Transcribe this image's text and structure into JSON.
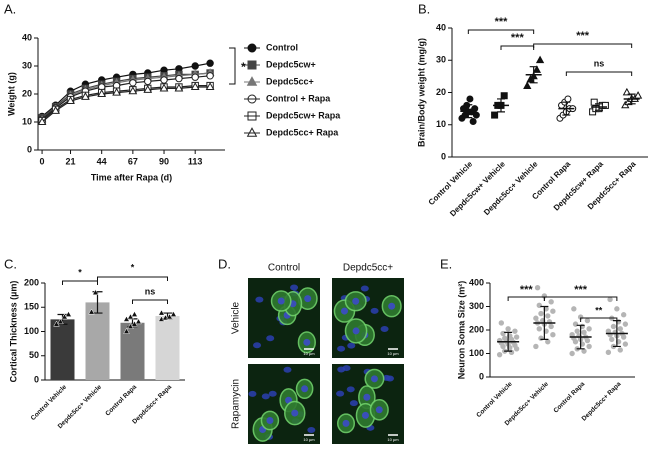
{
  "chart_data": [
    {
      "type": "line",
      "label": "A.",
      "x_label": "Time after Rapa (d)",
      "y_label": "Weight (g)",
      "x": [
        0,
        10,
        21,
        32,
        44,
        55,
        67,
        78,
        90,
        101,
        113,
        124
      ],
      "xlim": [
        -3,
        135
      ],
      "xticks": [
        0,
        21,
        44,
        67,
        90,
        113
      ],
      "ylim": [
        0,
        40
      ],
      "yticks": [
        0,
        10,
        20,
        30,
        40
      ],
      "series": [
        {
          "name": "Control",
          "color": "#111111",
          "marker": "circle",
          "filled": true,
          "values": [
            12,
            16,
            21,
            23.5,
            25,
            26,
            27,
            27.5,
            28.5,
            29,
            30,
            31
          ]
        },
        {
          "name": "Depdc5cw+",
          "color": "#444444",
          "marker": "square",
          "filled": true,
          "values": [
            11.5,
            15.5,
            20,
            22,
            23.5,
            24.5,
            25.5,
            26,
            26.5,
            27,
            27,
            27.5
          ]
        },
        {
          "name": "Depdc5cc+",
          "color": "#777777",
          "marker": "triangle",
          "filled": true,
          "values": [
            11,
            15,
            19.5,
            21.5,
            23,
            24,
            25,
            25.5,
            26,
            26.5,
            27,
            27.5
          ]
        },
        {
          "name": "Control + Rapa",
          "color": "#222222",
          "marker": "circle",
          "filled": false,
          "values": [
            11,
            15,
            19,
            21,
            22.5,
            23,
            24,
            24.5,
            25,
            25.5,
            26,
            26.5
          ]
        },
        {
          "name": "Depdc5cw+ Rapa",
          "color": "#222222",
          "marker": "square",
          "filled": false,
          "values": [
            10.5,
            14.5,
            18,
            19.5,
            20.5,
            21,
            21.5,
            22,
            22.5,
            22.5,
            23,
            23
          ]
        },
        {
          "name": "Depdc5cc+ Rapa",
          "color": "#222222",
          "marker": "triangle",
          "filled": false,
          "values": [
            10,
            14,
            17.5,
            19,
            20,
            20.5,
            21,
            21.5,
            22,
            22,
            22.5,
            22.5
          ]
        }
      ],
      "annotations": [
        "*"
      ]
    },
    {
      "type": "dot",
      "label": "B.",
      "y_label": "Brain/Body weight (mg/g)",
      "categories": [
        "Control Vehicle",
        "Depdc5cw+ Vehicle",
        "Depdc5cc+ Vehicle",
        "Control Rapa",
        "Depdc5cw+ Rapa",
        "Depdc5cc+ Rapa"
      ],
      "markers": [
        "circle",
        "square",
        "triangle",
        "circle",
        "square",
        "triangle"
      ],
      "filled": [
        true,
        true,
        true,
        false,
        false,
        false
      ],
      "color": "#111111",
      "marker_size": 3,
      "points": [
        [
          12,
          13,
          14,
          14,
          15,
          15,
          16,
          18,
          11,
          13
        ],
        [
          13,
          16,
          16,
          19
        ],
        [
          22,
          24,
          25,
          27,
          30
        ],
        [
          12,
          13,
          14,
          15,
          15,
          16,
          17,
          18
        ],
        [
          14,
          15,
          15,
          16,
          16,
          17
        ],
        [
          16,
          17,
          18,
          18,
          19,
          20
        ]
      ],
      "means": [
        14.2,
        16,
        25.5,
        15,
        15.5,
        18
      ],
      "errors": [
        2,
        2,
        2.5,
        2,
        1,
        1.5
      ],
      "ylim": [
        0,
        40
      ],
      "yticks": [
        0,
        10,
        20,
        30,
        40
      ],
      "annotations": [
        "***",
        "***",
        "***",
        "ns"
      ]
    },
    {
      "type": "bar",
      "label": "C.",
      "y_label": "Cortical Thickness (µm)",
      "categories": [
        "Control Vehicle",
        "Depdc5cc+ Vehicle",
        "Control Rapa",
        "Depdc5cc+ Rapa"
      ],
      "values": [
        125,
        160,
        118,
        132
      ],
      "errors": [
        10,
        22,
        8,
        6
      ],
      "colors": [
        "#3a3a3a",
        "#a8a8a8",
        "#7a7a7a",
        "#d6d6d6"
      ],
      "points": [
        [
          115,
          120,
          130,
          135
        ],
        [
          140,
          180
        ],
        [
          100,
          110,
          115,
          120,
          125,
          130,
          135
        ],
        [
          125,
          128,
          130,
          135,
          138
        ]
      ],
      "ylim": [
        0,
        200
      ],
      "yticks": [
        0,
        50,
        100,
        150,
        200
      ],
      "annotations": [
        "*",
        "*",
        "ns"
      ]
    },
    {
      "type": "dot",
      "label": "E.",
      "y_label": "Neuron Soma Size (m²)",
      "categories": [
        "Control Vehicle",
        "Depdc5cc+ Vehicle",
        "Control Rapa",
        "Depdc5cc+ Rapa"
      ],
      "markers": [
        "circle",
        "circle",
        "circle",
        "circle"
      ],
      "filled": [
        true,
        true,
        true,
        true
      ],
      "color": "#b5b5b5",
      "marker_size": 2.2,
      "points": [
        [
          95,
          105,
          110,
          120,
          125,
          130,
          135,
          140,
          145,
          148,
          150,
          155,
          160,
          165,
          170,
          175,
          185,
          195,
          205,
          230
        ],
        [
          130,
          150,
          165,
          180,
          195,
          205,
          215,
          225,
          230,
          235,
          240,
          250,
          260,
          270,
          280,
          290,
          305,
          320,
          345,
          380
        ],
        [
          100,
          110,
          120,
          130,
          140,
          150,
          155,
          160,
          165,
          170,
          175,
          180,
          190,
          195,
          205,
          215,
          225,
          240,
          255,
          290
        ],
        [
          105,
          115,
          130,
          140,
          150,
          160,
          170,
          175,
          180,
          185,
          190,
          195,
          205,
          215,
          225,
          235,
          250,
          265,
          290,
          330
        ]
      ],
      "means": [
        150,
        230,
        170,
        185
      ],
      "errors": [
        40,
        70,
        50,
        55
      ],
      "ylim": [
        0,
        400
      ],
      "yticks": [
        0,
        100,
        200,
        300,
        400
      ],
      "annotations": [
        "***",
        "***",
        "**"
      ]
    }
  ],
  "panel_d": {
    "label": "D.",
    "columns": [
      "Control",
      "Depdc5cc+"
    ],
    "rows": [
      "Vehicle",
      "Rapamycin"
    ],
    "scale_bar": "10 µm"
  }
}
